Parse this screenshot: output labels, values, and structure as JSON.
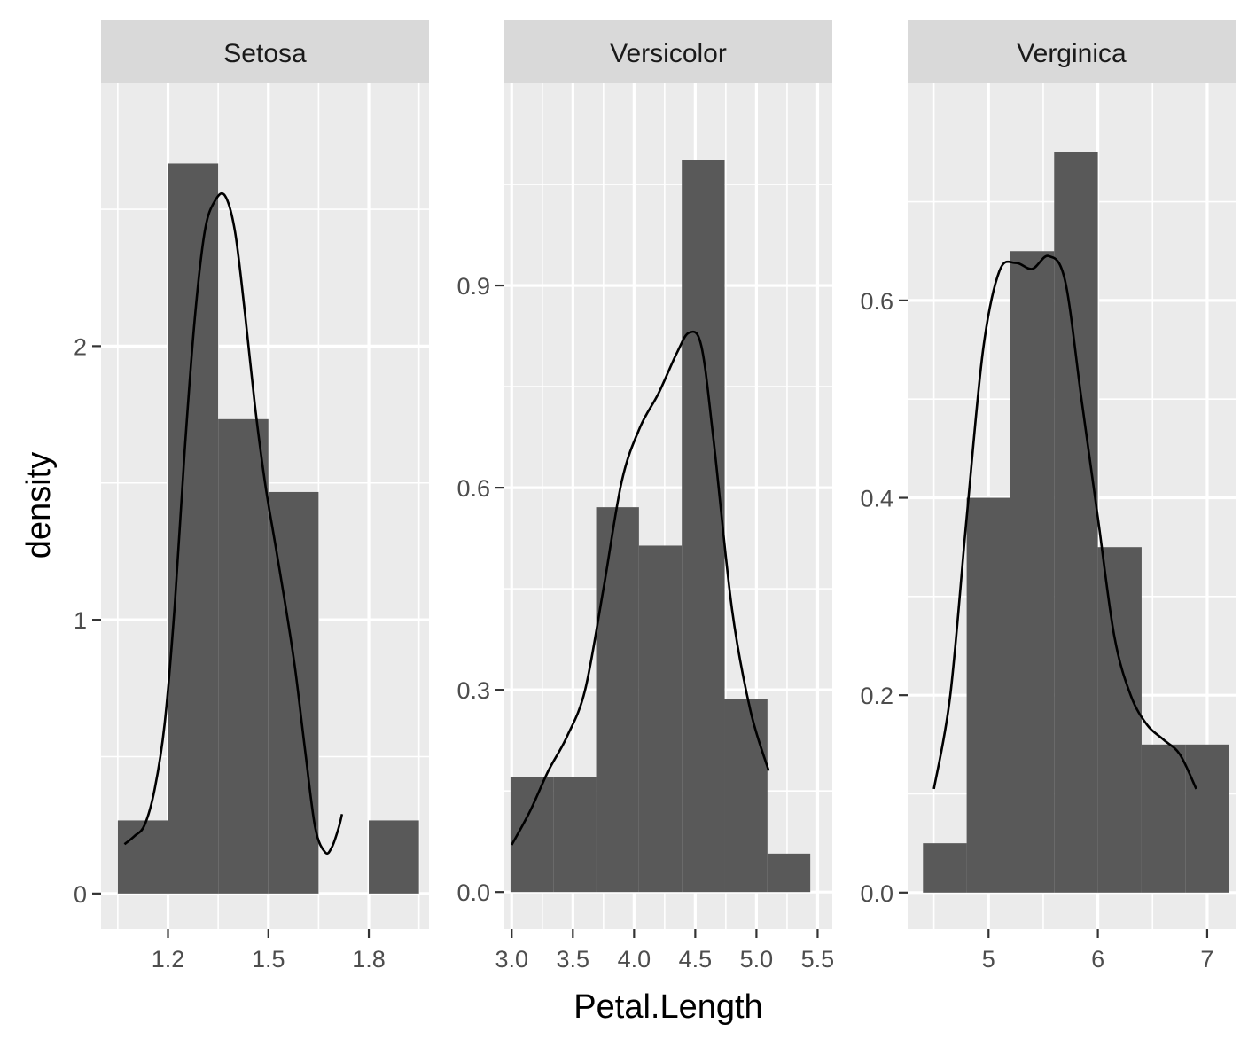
{
  "chart_data": {
    "type": "histogram",
    "xlabel": "Petal.Length",
    "ylabel": "density",
    "panels": [
      {
        "strip": "Setosa",
        "xlim": [
          1.0,
          1.98
        ],
        "ylim": [
          -0.13,
          2.96
        ],
        "xticks": [
          1.2,
          1.5,
          1.8
        ],
        "xtick_labels": [
          "1.2",
          "1.5",
          "1.8"
        ],
        "yticks": [
          0,
          1,
          2
        ],
        "ytick_labels": [
          "0",
          "1",
          "2"
        ],
        "bins": [
          {
            "x0": 1.05,
            "x1": 1.2,
            "density": 0.267
          },
          {
            "x0": 1.2,
            "x1": 1.35,
            "density": 2.667
          },
          {
            "x0": 1.35,
            "x1": 1.5,
            "density": 1.733
          },
          {
            "x0": 1.5,
            "x1": 1.65,
            "density": 1.467
          },
          {
            "x0": 1.65,
            "x1": 1.8,
            "density": 0
          },
          {
            "x0": 1.8,
            "x1": 1.95,
            "density": 0.267
          }
        ],
        "density_curve": [
          [
            1.07,
            0.18
          ],
          [
            1.1,
            0.21
          ],
          [
            1.13,
            0.25
          ],
          [
            1.16,
            0.38
          ],
          [
            1.19,
            0.62
          ],
          [
            1.22,
            1.05
          ],
          [
            1.25,
            1.62
          ],
          [
            1.28,
            2.1
          ],
          [
            1.31,
            2.42
          ],
          [
            1.34,
            2.53
          ],
          [
            1.37,
            2.55
          ],
          [
            1.4,
            2.42
          ],
          [
            1.43,
            2.12
          ],
          [
            1.46,
            1.78
          ],
          [
            1.49,
            1.5
          ],
          [
            1.52,
            1.28
          ],
          [
            1.55,
            1.06
          ],
          [
            1.58,
            0.82
          ],
          [
            1.61,
            0.52
          ],
          [
            1.64,
            0.24
          ],
          [
            1.67,
            0.15
          ],
          [
            1.69,
            0.17
          ],
          [
            1.71,
            0.24
          ],
          [
            1.72,
            0.29
          ]
        ]
      },
      {
        "strip": "Versicolor",
        "xlim": [
          2.94,
          5.62
        ],
        "ylim": [
          -0.055,
          1.2
        ],
        "xticks": [
          3.0,
          3.5,
          4.0,
          4.5,
          5.0,
          5.5
        ],
        "xtick_labels": [
          "3.0",
          "3.5",
          "4.0",
          "4.5",
          "5.0",
          "5.5"
        ],
        "yticks": [
          0.0,
          0.3,
          0.6,
          0.9
        ],
        "ytick_labels": [
          "0.0",
          "0.3",
          "0.6",
          "0.9"
        ],
        "bins": [
          {
            "x0": 2.99,
            "x1": 3.34,
            "density": 0.171
          },
          {
            "x0": 3.34,
            "x1": 3.69,
            "density": 0.171
          },
          {
            "x0": 3.69,
            "x1": 4.04,
            "density": 0.571
          },
          {
            "x0": 4.04,
            "x1": 4.39,
            "density": 0.514
          },
          {
            "x0": 4.39,
            "x1": 4.74,
            "density": 1.086
          },
          {
            "x0": 4.74,
            "x1": 5.09,
            "density": 0.286
          },
          {
            "x0": 5.09,
            "x1": 5.44,
            "density": 0.057
          }
        ],
        "density_curve": [
          [
            3.0,
            0.07
          ],
          [
            3.15,
            0.12
          ],
          [
            3.3,
            0.18
          ],
          [
            3.45,
            0.23
          ],
          [
            3.6,
            0.3
          ],
          [
            3.75,
            0.45
          ],
          [
            3.9,
            0.61
          ],
          [
            4.05,
            0.69
          ],
          [
            4.2,
            0.74
          ],
          [
            4.35,
            0.8
          ],
          [
            4.45,
            0.83
          ],
          [
            4.55,
            0.81
          ],
          [
            4.65,
            0.67
          ],
          [
            4.8,
            0.42
          ],
          [
            4.95,
            0.27
          ],
          [
            5.1,
            0.18
          ]
        ]
      },
      {
        "strip": "Verginica",
        "xlim": [
          4.26,
          7.26
        ],
        "ylim": [
          -0.037,
          0.82
        ],
        "xticks": [
          5,
          6,
          7
        ],
        "xtick_labels": [
          "5",
          "6",
          "7"
        ],
        "yticks": [
          0.0,
          0.2,
          0.4,
          0.6
        ],
        "ytick_labels": [
          "0.0",
          "0.2",
          "0.4",
          "0.6"
        ],
        "bins": [
          {
            "x0": 4.4,
            "x1": 4.8,
            "density": 0.05
          },
          {
            "x0": 4.8,
            "x1": 5.2,
            "density": 0.4
          },
          {
            "x0": 5.2,
            "x1": 5.6,
            "density": 0.65
          },
          {
            "x0": 5.6,
            "x1": 6.0,
            "density": 0.75
          },
          {
            "x0": 6.0,
            "x1": 6.4,
            "density": 0.35
          },
          {
            "x0": 6.4,
            "x1": 6.8,
            "density": 0.15
          },
          {
            "x0": 6.8,
            "x1": 7.2,
            "density": 0.15
          }
        ],
        "density_curve": [
          [
            4.5,
            0.105
          ],
          [
            4.65,
            0.2
          ],
          [
            4.8,
            0.38
          ],
          [
            4.95,
            0.55
          ],
          [
            5.1,
            0.63
          ],
          [
            5.25,
            0.638
          ],
          [
            5.4,
            0.632
          ],
          [
            5.55,
            0.645
          ],
          [
            5.7,
            0.62
          ],
          [
            5.85,
            0.5
          ],
          [
            6.0,
            0.38
          ],
          [
            6.15,
            0.26
          ],
          [
            6.3,
            0.2
          ],
          [
            6.45,
            0.17
          ],
          [
            6.6,
            0.155
          ],
          [
            6.75,
            0.14
          ],
          [
            6.9,
            0.105
          ]
        ]
      }
    ]
  }
}
